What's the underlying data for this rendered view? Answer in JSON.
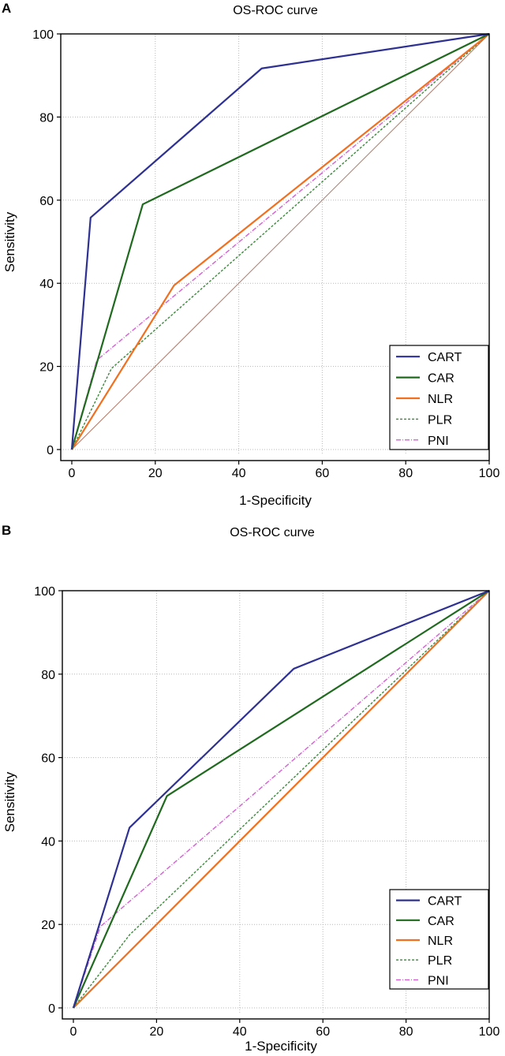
{
  "chart_data": [
    {
      "panel": "A",
      "type": "line",
      "title": "OS-ROC curve",
      "xlabel": "1-Specificity",
      "ylabel": "Sensitivity",
      "xlim": [
        0,
        100
      ],
      "ylim": [
        0,
        100
      ],
      "xticks": [
        0,
        20,
        40,
        60,
        80,
        100
      ],
      "yticks": [
        0,
        20,
        40,
        60,
        80,
        100
      ],
      "grid": true,
      "legend_position": "bottom-right",
      "reference_line": true,
      "series": [
        {
          "name": "CART",
          "color": "#2e3192",
          "dash": "solid",
          "x": [
            0,
            4.5,
            45.5,
            100
          ],
          "y": [
            0,
            55.8,
            91.7,
            100
          ]
        },
        {
          "name": "CAR",
          "color": "#1f6a1f",
          "dash": "solid",
          "x": [
            0,
            17,
            100
          ],
          "y": [
            0,
            59,
            100
          ]
        },
        {
          "name": "NLR",
          "color": "#f07020",
          "dash": "solid",
          "x": [
            0,
            24.5,
            100
          ],
          "y": [
            0,
            39.5,
            100
          ]
        },
        {
          "name": "PLR",
          "color": "#3a8a3a",
          "dash": "dotted",
          "x": [
            0,
            9.5,
            100
          ],
          "y": [
            0,
            19.5,
            100
          ]
        },
        {
          "name": "PNI",
          "color": "#d65fd6",
          "dash": "dashdot",
          "x": [
            0,
            6,
            100
          ],
          "y": [
            0,
            21.5,
            100
          ]
        }
      ]
    },
    {
      "panel": "B",
      "type": "line",
      "title": "OS-ROC curve",
      "xlabel": "1-Specificity",
      "ylabel": "Sensitivity",
      "xlim": [
        0,
        100
      ],
      "ylim": [
        0,
        100
      ],
      "xticks": [
        0,
        20,
        40,
        60,
        80,
        100
      ],
      "yticks": [
        0,
        20,
        40,
        60,
        80,
        100
      ],
      "grid": true,
      "legend_position": "bottom-right",
      "reference_line": true,
      "series": [
        {
          "name": "CART",
          "color": "#2e3192",
          "dash": "solid",
          "x": [
            0,
            13.5,
            53,
            100
          ],
          "y": [
            0,
            43.2,
            81.3,
            100
          ]
        },
        {
          "name": "CAR",
          "color": "#1f6a1f",
          "dash": "solid",
          "x": [
            0,
            22.5,
            100
          ],
          "y": [
            0,
            50.8,
            100
          ]
        },
        {
          "name": "NLR",
          "color": "#f07020",
          "dash": "solid",
          "x": [
            0,
            100
          ],
          "y": [
            0,
            100
          ]
        },
        {
          "name": "PLR",
          "color": "#3a8a3a",
          "dash": "dotted",
          "x": [
            0,
            13.5,
            100
          ],
          "y": [
            0,
            17.5,
            100
          ]
        },
        {
          "name": "PNI",
          "color": "#d65fd6",
          "dash": "dashdot",
          "x": [
            0,
            6.5,
            100
          ],
          "y": [
            0,
            19.5,
            100
          ]
        }
      ]
    }
  ]
}
